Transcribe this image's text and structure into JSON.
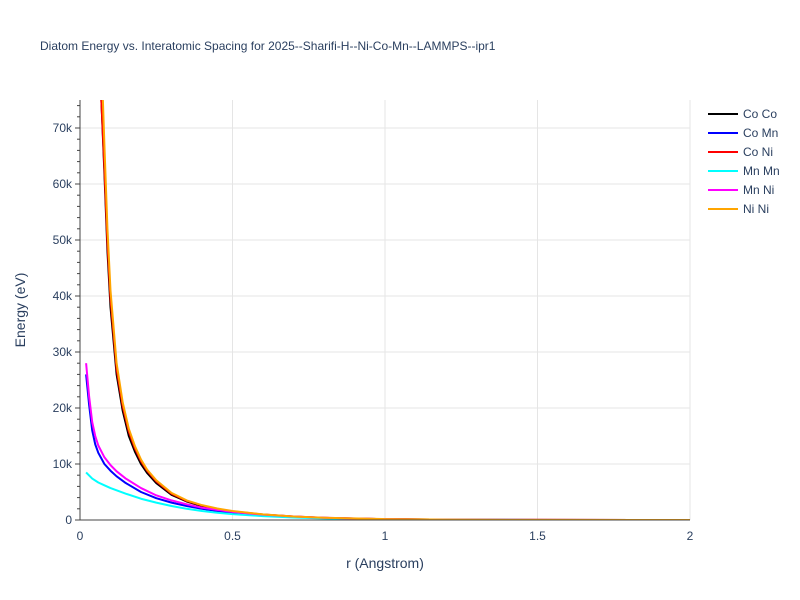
{
  "chart_data": {
    "type": "line",
    "title": "Diatom Energy vs. Interatomic Spacing for 2025--Sharifi-H--Ni-Co-Mn--LAMMPS--ipr1",
    "xlabel": "r (Angstrom)",
    "ylabel": "Energy (eV)",
    "xlim": [
      0,
      2
    ],
    "ylim": [
      0,
      75000
    ],
    "grid": true,
    "legend_placement": "top-right",
    "x_ticks": [
      {
        "value": 0,
        "label": "0"
      },
      {
        "value": 0.5,
        "label": "0.5"
      },
      {
        "value": 1,
        "label": "1"
      },
      {
        "value": 1.5,
        "label": "1.5"
      },
      {
        "value": 2,
        "label": "2"
      }
    ],
    "y_ticks": [
      {
        "value": 0,
        "label": "0"
      },
      {
        "value": 10000,
        "label": "10k"
      },
      {
        "value": 20000,
        "label": "20k"
      },
      {
        "value": 30000,
        "label": "30k"
      },
      {
        "value": 40000,
        "label": "40k"
      },
      {
        "value": 50000,
        "label": "50k"
      },
      {
        "value": 60000,
        "label": "60k"
      },
      {
        "value": 70000,
        "label": "70k"
      }
    ],
    "series": [
      {
        "name": "Co Co",
        "color": "#000000",
        "x": [
          0.07,
          0.08,
          0.09,
          0.1,
          0.12,
          0.14,
          0.16,
          0.18,
          0.2,
          0.22,
          0.25,
          0.3,
          0.35,
          0.4,
          0.45,
          0.5,
          0.6,
          0.7,
          0.8,
          1.0,
          1.2,
          1.5,
          2.0
        ],
        "y": [
          75000,
          62000,
          48000,
          38000,
          26000,
          19500,
          15000,
          12200,
          10000,
          8400,
          6600,
          4500,
          3300,
          2500,
          1900,
          1500,
          950,
          600,
          380,
          150,
          60,
          15,
          0
        ]
      },
      {
        "name": "Co Mn",
        "color": "#0000ff",
        "x": [
          0.02,
          0.03,
          0.04,
          0.05,
          0.06,
          0.08,
          0.1,
          0.12,
          0.15,
          0.2,
          0.25,
          0.3,
          0.35,
          0.4,
          0.45,
          0.5,
          0.6,
          0.7,
          0.8,
          1.0,
          1.2,
          1.5,
          2.0
        ],
        "y": [
          26000,
          20500,
          16000,
          13500,
          12000,
          10000,
          8800,
          7800,
          6600,
          5000,
          3900,
          3100,
          2500,
          2000,
          1600,
          1300,
          850,
          550,
          350,
          130,
          50,
          10,
          0
        ]
      },
      {
        "name": "Co Ni",
        "color": "#ff0000",
        "x": [
          0.07,
          0.08,
          0.09,
          0.1,
          0.12,
          0.14,
          0.16,
          0.18,
          0.2,
          0.22,
          0.25,
          0.3,
          0.35,
          0.4,
          0.45,
          0.5,
          0.6,
          0.7,
          0.8,
          1.0,
          1.2,
          1.5,
          2.0
        ],
        "y": [
          75000,
          63000,
          49500,
          39500,
          27000,
          20300,
          15800,
          12800,
          10500,
          8800,
          6900,
          4700,
          3400,
          2600,
          2000,
          1550,
          980,
          620,
          390,
          155,
          62,
          15,
          0
        ]
      },
      {
        "name": "Mn Mn",
        "color": "#00ffff",
        "x": [
          0.02,
          0.04,
          0.06,
          0.08,
          0.1,
          0.15,
          0.2,
          0.25,
          0.3,
          0.35,
          0.4,
          0.45,
          0.5,
          0.6,
          0.7,
          0.8,
          1.0,
          1.2,
          1.5,
          2.0
        ],
        "y": [
          8500,
          7400,
          6700,
          6200,
          5700,
          4700,
          3800,
          3100,
          2500,
          2000,
          1600,
          1300,
          1050,
          700,
          450,
          290,
          110,
          40,
          8,
          0
        ]
      },
      {
        "name": "Mn Ni",
        "color": "#ff00ff",
        "x": [
          0.02,
          0.03,
          0.04,
          0.05,
          0.06,
          0.08,
          0.1,
          0.12,
          0.15,
          0.2,
          0.25,
          0.3,
          0.35,
          0.4,
          0.45,
          0.5,
          0.6,
          0.7,
          0.8,
          1.0,
          1.2,
          1.5,
          2.0
        ],
        "y": [
          28000,
          22000,
          17500,
          15000,
          13300,
          11200,
          9800,
          8700,
          7400,
          5700,
          4400,
          3500,
          2800,
          2200,
          1800,
          1450,
          950,
          620,
          400,
          150,
          55,
          12,
          0
        ]
      },
      {
        "name": "Ni Ni",
        "color": "#ffa500",
        "x": [
          0.075,
          0.08,
          0.09,
          0.1,
          0.12,
          0.14,
          0.16,
          0.18,
          0.2,
          0.22,
          0.25,
          0.3,
          0.35,
          0.4,
          0.45,
          0.5,
          0.6,
          0.7,
          0.8,
          1.0,
          1.2,
          1.5,
          2.0
        ],
        "y": [
          75000,
          67000,
          52000,
          41000,
          28000,
          21000,
          16300,
          13200,
          10800,
          9000,
          7100,
          4850,
          3500,
          2650,
          2050,
          1600,
          1000,
          630,
          400,
          160,
          64,
          16,
          0
        ]
      }
    ]
  }
}
